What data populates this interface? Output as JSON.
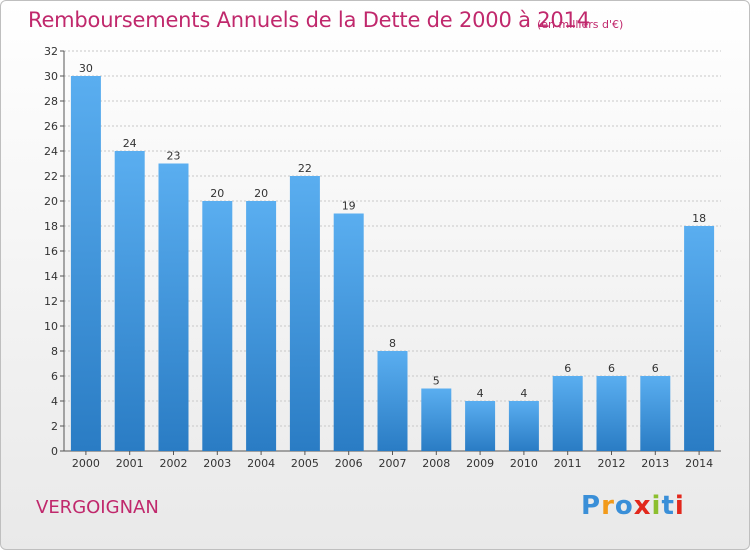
{
  "title": "Remboursements Annuels de la Dette de 2000 à 2014",
  "unit": "(en milliers d'€)",
  "commune": "VERGOIGNAN",
  "logo": {
    "letters": [
      "P",
      "r",
      "o",
      "x",
      "i",
      "t",
      "i"
    ],
    "colors": [
      "#3a8fd8",
      "#f29a1a",
      "#3a8fd8",
      "#e2281c",
      "#8cbf2f",
      "#3a8fd8",
      "#e2281c"
    ]
  },
  "colors": {
    "bar_top": "#5aaef0",
    "bar_bottom": "#2a7cc4",
    "accent": "#c0286c"
  },
  "chart_data": {
    "type": "bar",
    "title": "Remboursements Annuels de la Dette de 2000 à 2014",
    "ylabel": "en milliers d'€",
    "categories": [
      "2000",
      "2001",
      "2002",
      "2003",
      "2004",
      "2005",
      "2006",
      "2007",
      "2008",
      "2009",
      "2010",
      "2011",
      "2012",
      "2013",
      "2014"
    ],
    "values": [
      30,
      24,
      23,
      20,
      20,
      22,
      19,
      8,
      5,
      4,
      4,
      6,
      6,
      6,
      18
    ],
    "ylim": [
      0,
      32
    ],
    "yticks": [
      0,
      2,
      4,
      6,
      8,
      10,
      12,
      14,
      16,
      18,
      20,
      22,
      24,
      26,
      28,
      30,
      32
    ],
    "grid": true
  }
}
